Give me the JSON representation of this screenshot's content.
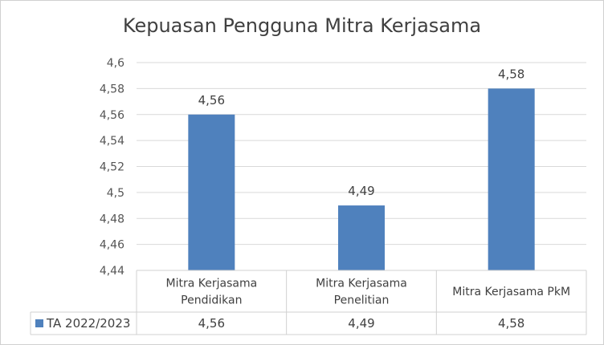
{
  "chart_data": {
    "type": "bar",
    "title": "Kepuasan Pengguna Mitra Kerjasama",
    "categories": [
      [
        "Mitra Kerjasama",
        "Pendidikan"
      ],
      [
        "Mitra Kerjasama",
        "Penelitian"
      ],
      [
        "Mitra Kerjasama PkM"
      ]
    ],
    "series": [
      {
        "name": "TA 2022/2023",
        "values": [
          4.56,
          4.49,
          4.58
        ],
        "labels": [
          "4,56",
          "4,49",
          "4,58"
        ]
      }
    ],
    "ylim": [
      4.44,
      4.6
    ],
    "ytick_step": 0.02,
    "yticks": [
      "4,44",
      "4,46",
      "4,48",
      "4,5",
      "4,52",
      "4,54",
      "4,56",
      "4,58",
      "4,6"
    ],
    "grid": true,
    "legend": "data-table",
    "xlabel": "",
    "ylabel": "",
    "bar_color": "#4f81bd"
  }
}
